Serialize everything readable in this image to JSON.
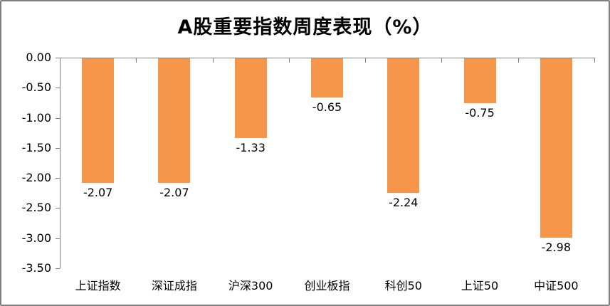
{
  "chart_data": {
    "type": "bar",
    "title": "A股重要指数周度表现（%）",
    "categories": [
      "上证指数",
      "深证成指",
      "沪深300",
      "创业板指",
      "科创50",
      "上证50",
      "中证500"
    ],
    "values": [
      -2.07,
      -2.07,
      -1.33,
      -0.65,
      -2.24,
      -0.75,
      -2.98
    ],
    "value_labels": [
      "-2.07",
      "-2.07",
      "-1.33",
      "-0.65",
      "-2.24",
      "-0.75",
      "-2.98"
    ],
    "y_tick_labels": [
      "0.00",
      "-0.50",
      "-1.00",
      "-1.50",
      "-2.00",
      "-2.50",
      "-3.00",
      "-3.50"
    ],
    "ylim": [
      -3.5,
      0
    ],
    "xlabel": "",
    "ylabel": "",
    "grid": "off",
    "legend_position": "none",
    "bar_color": "#F5964B",
    "axis_color": "#808080",
    "text_color": "#000000"
  }
}
